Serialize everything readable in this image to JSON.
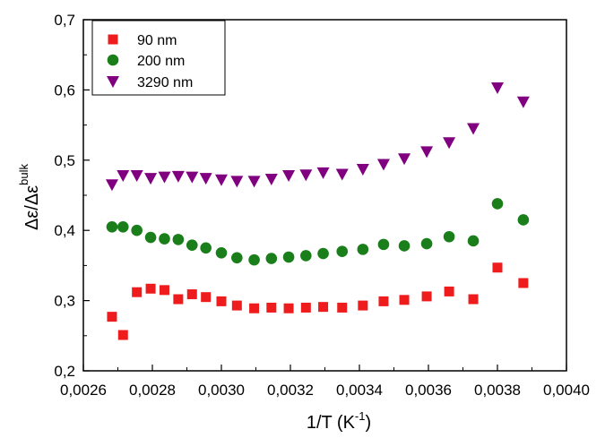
{
  "chart_data": {
    "type": "scatter",
    "xlabel": {
      "main": "1/T (K",
      "sup": "-1",
      "end": ")"
    },
    "ylabel": {
      "main": "Δε/Δε",
      "sup": "bulk"
    },
    "xlim": [
      0.0026,
      0.004
    ],
    "ylim": [
      0.2,
      0.7
    ],
    "x_ticks": [
      0.0026,
      0.0028,
      0.003,
      0.0032,
      0.0034,
      0.0036,
      0.0038,
      0.004
    ],
    "x_tick_labels": [
      "0,0026",
      "0,0028",
      "0,0030",
      "0,0032",
      "0,0034",
      "0,0036",
      "0,0038",
      "0,0040"
    ],
    "y_ticks": [
      0.2,
      0.3,
      0.4,
      0.5,
      0.6,
      0.7
    ],
    "y_tick_labels": [
      "0,2",
      "0,3",
      "0,4",
      "0,5",
      "0,6",
      "0,7"
    ],
    "legend_position": "top-left",
    "series": [
      {
        "name": "90 nm",
        "marker": "square",
        "color": "#ee1c1c",
        "x": [
          0.002683,
          0.002715,
          0.002755,
          0.002795,
          0.002835,
          0.002875,
          0.002915,
          0.002955,
          0.003,
          0.003045,
          0.003095,
          0.003145,
          0.003195,
          0.003245,
          0.003295,
          0.00335,
          0.00341,
          0.00347,
          0.00353,
          0.003595,
          0.00366,
          0.00373,
          0.0038,
          0.003875
        ],
        "y": [
          0.277,
          0.251,
          0.312,
          0.317,
          0.315,
          0.302,
          0.309,
          0.305,
          0.299,
          0.293,
          0.289,
          0.29,
          0.289,
          0.29,
          0.291,
          0.29,
          0.293,
          0.299,
          0.301,
          0.306,
          0.313,
          0.302,
          0.347,
          0.325
        ]
      },
      {
        "name": "200 nm",
        "marker": "circle",
        "color": "#1a7f1a",
        "x": [
          0.002683,
          0.002715,
          0.002755,
          0.002795,
          0.002835,
          0.002875,
          0.002915,
          0.002955,
          0.003,
          0.003045,
          0.003095,
          0.003145,
          0.003195,
          0.003245,
          0.003295,
          0.00335,
          0.00341,
          0.00347,
          0.00353,
          0.003595,
          0.00366,
          0.00373,
          0.0038,
          0.003875
        ],
        "y": [
          0.405,
          0.405,
          0.4,
          0.39,
          0.388,
          0.387,
          0.379,
          0.375,
          0.368,
          0.361,
          0.358,
          0.36,
          0.362,
          0.364,
          0.367,
          0.37,
          0.373,
          0.38,
          0.378,
          0.381,
          0.391,
          0.385,
          0.438,
          0.415
        ]
      },
      {
        "name": "3290 nm",
        "marker": "triangle-down",
        "color": "#800080",
        "x": [
          0.002683,
          0.002715,
          0.002755,
          0.002795,
          0.002835,
          0.002875,
          0.002915,
          0.002955,
          0.003,
          0.003045,
          0.003095,
          0.003145,
          0.003195,
          0.003245,
          0.003295,
          0.00335,
          0.00341,
          0.00347,
          0.00353,
          0.003595,
          0.00366,
          0.00373,
          0.0038,
          0.003875
        ],
        "y": [
          0.465,
          0.478,
          0.478,
          0.474,
          0.476,
          0.477,
          0.476,
          0.474,
          0.472,
          0.47,
          0.47,
          0.473,
          0.478,
          0.479,
          0.482,
          0.48,
          0.487,
          0.494,
          0.502,
          0.512,
          0.525,
          0.545,
          0.603,
          0.583
        ]
      }
    ]
  }
}
